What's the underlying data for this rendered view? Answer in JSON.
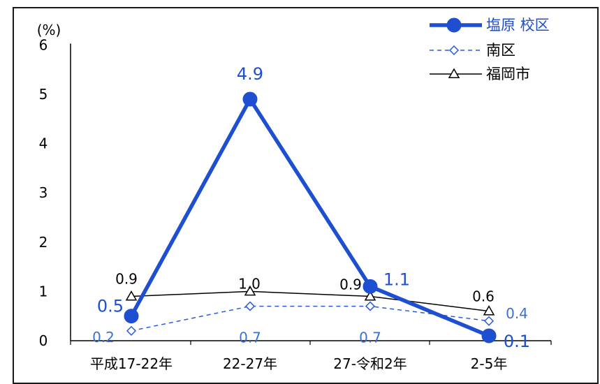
{
  "chart_data": {
    "type": "line",
    "ylabel": "(%)",
    "ylim": [
      0,
      6
    ],
    "yticks": [
      "0",
      "1",
      "2",
      "3",
      "4",
      "5",
      "6"
    ],
    "categories": [
      "平成17-22年",
      "22-27年",
      "27-令和2年",
      "2-5年"
    ],
    "grid": false,
    "legend_position": "top-right",
    "series": [
      {
        "name": "塩原 校区",
        "values": [
          0.5,
          4.9,
          1.1,
          0.1
        ],
        "labels": [
          "0.5",
          "4.9",
          "1.1",
          "0.1"
        ],
        "color": "#1f4fd1",
        "marker": "circle",
        "style": "solid-thick"
      },
      {
        "name": "南区",
        "values": [
          0.2,
          0.7,
          0.7,
          0.4
        ],
        "labels": [
          "0.2",
          "0.7",
          "0.7",
          "0.4"
        ],
        "color": "#2a5cd6",
        "marker": "diamond",
        "style": "dashed"
      },
      {
        "name": "福岡市",
        "values": [
          0.9,
          1.0,
          0.9,
          0.6
        ],
        "labels": [
          "0.9",
          "1.0",
          "0.9",
          "0.6"
        ],
        "color": "#000000",
        "marker": "triangle",
        "style": "solid-thin"
      }
    ]
  }
}
